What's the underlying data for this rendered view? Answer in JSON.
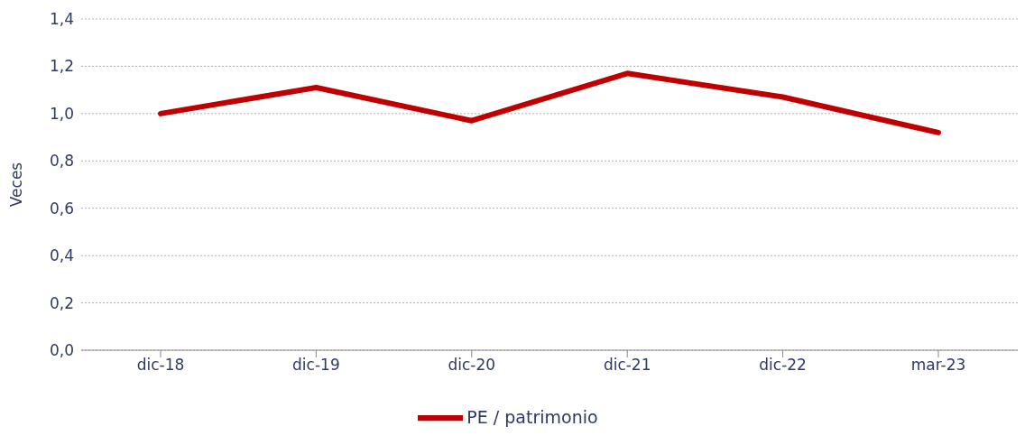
{
  "chart_data": {
    "type": "line",
    "ylabel": "Veces",
    "categories": [
      "dic-18",
      "dic-19",
      "dic-20",
      "dic-21",
      "dic-22",
      "mar-23"
    ],
    "series": [
      {
        "name": "PE / patrimonio",
        "color": "#c00000",
        "values": [
          1.0,
          1.11,
          0.97,
          1.17,
          1.07,
          0.92
        ]
      }
    ],
    "ylim": [
      0,
      1.4
    ],
    "yticks": [
      {
        "value": 0,
        "label": "0,0"
      },
      {
        "value": 0.2,
        "label": "0,2"
      },
      {
        "value": 0.4,
        "label": "0,4"
      },
      {
        "value": 0.6,
        "label": "0,6"
      },
      {
        "value": 0.8,
        "label": "0,8"
      },
      {
        "value": 1.0,
        "label": "1,0"
      },
      {
        "value": 1.2,
        "label": "1,2"
      },
      {
        "value": 1.4,
        "label": "1,4"
      }
    ],
    "grid": "y",
    "legend": "bottom",
    "marker": "none",
    "line_style": "solid"
  }
}
